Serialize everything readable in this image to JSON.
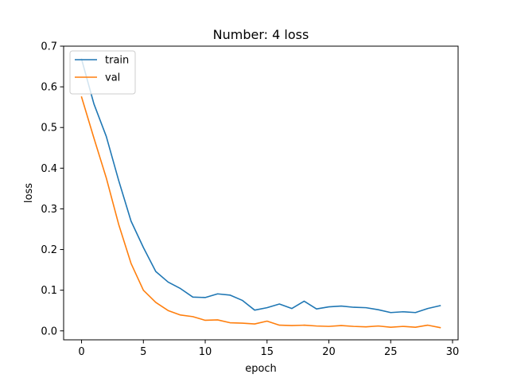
{
  "chart_data": {
    "type": "line",
    "title": "Number: 4 loss",
    "xlabel": "epoch",
    "ylabel": "loss",
    "xlim": [
      -1.45,
      30.45
    ],
    "ylim": [
      -0.022,
      0.7
    ],
    "xticks": [
      0,
      5,
      10,
      15,
      20,
      25,
      30
    ],
    "yticks": [
      0.0,
      0.1,
      0.2,
      0.3,
      0.4,
      0.5,
      0.6,
      0.7
    ],
    "ytick_labels": [
      "0.0",
      "0.1",
      "0.2",
      "0.3",
      "0.4",
      "0.5",
      "0.6",
      "0.7"
    ],
    "grid": false,
    "legend_position": "top-left",
    "x": [
      0,
      1,
      2,
      3,
      4,
      5,
      6,
      7,
      8,
      9,
      10,
      11,
      12,
      13,
      14,
      15,
      16,
      17,
      18,
      19,
      20,
      21,
      22,
      23,
      24,
      25,
      26,
      27,
      28,
      29
    ],
    "series": [
      {
        "name": "train",
        "color": "#1f77b4",
        "values": [
          0.668,
          0.558,
          0.478,
          0.37,
          0.27,
          0.205,
          0.146,
          0.12,
          0.104,
          0.083,
          0.082,
          0.091,
          0.088,
          0.075,
          0.051,
          0.057,
          0.066,
          0.055,
          0.073,
          0.054,
          0.059,
          0.061,
          0.058,
          0.057,
          0.052,
          0.045,
          0.047,
          0.045,
          0.055,
          0.062
        ]
      },
      {
        "name": "val",
        "color": "#ff7f0e",
        "values": [
          0.575,
          0.474,
          0.376,
          0.262,
          0.166,
          0.1,
          0.07,
          0.05,
          0.039,
          0.035,
          0.026,
          0.027,
          0.02,
          0.019,
          0.017,
          0.024,
          0.014,
          0.013,
          0.014,
          0.012,
          0.011,
          0.013,
          0.011,
          0.01,
          0.012,
          0.009,
          0.011,
          0.009,
          0.014,
          0.008
        ]
      }
    ]
  }
}
